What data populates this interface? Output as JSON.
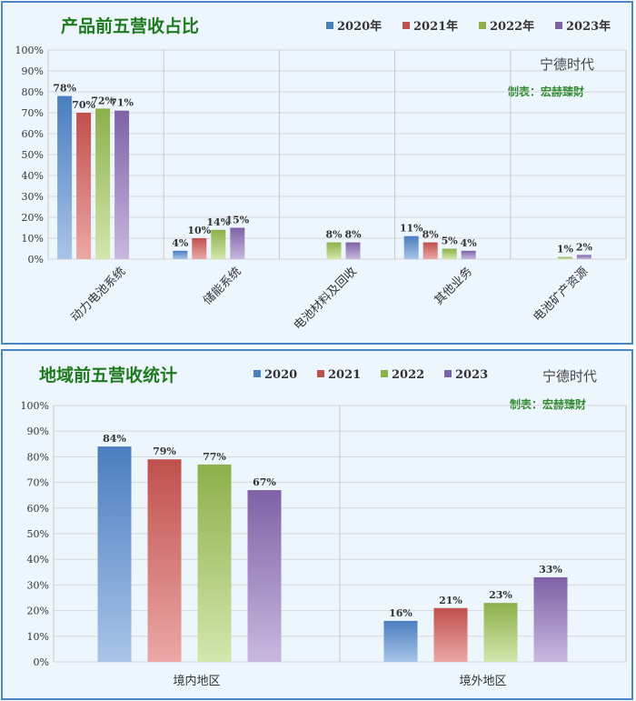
{
  "colors": {
    "s2020": [
      "#4a7ebf",
      "#a9c4e8"
    ],
    "s2021": [
      "#c0504d",
      "#eba8a6"
    ],
    "s2022": [
      "#8db04a",
      "#d3e6ad"
    ],
    "s2023": [
      "#7e62a6",
      "#c8b8df"
    ],
    "title": "#1f7a1f",
    "border": "#4a86c8"
  },
  "chart_data": [
    {
      "type": "bar",
      "title": "产品前五营收占比",
      "brand": "宁德时代",
      "maker": "制表：宏赫臻财",
      "categories": [
        "动力电池系统",
        "储能系统",
        "电池材料及回收",
        "其他业务",
        "电池矿产资源"
      ],
      "legend": [
        "2020年",
        "2021年",
        "2022年",
        "2023年"
      ],
      "series": [
        {
          "name": "2020年",
          "values": [
            78,
            4,
            null,
            11,
            null
          ],
          "labels": [
            "78%",
            "4%",
            "",
            "11%",
            ""
          ]
        },
        {
          "name": "2021年",
          "values": [
            70,
            10,
            null,
            8,
            null
          ],
          "labels": [
            "70%",
            "10%",
            "",
            "8%",
            ""
          ]
        },
        {
          "name": "2022年",
          "values": [
            72,
            14,
            8,
            5,
            1
          ],
          "labels": [
            "72%",
            "14%",
            "8%",
            "5%",
            "1%"
          ]
        },
        {
          "name": "2023年",
          "values": [
            71,
            15,
            8,
            4,
            2
          ],
          "labels": [
            "71%",
            "15%",
            "8%",
            "4%",
            "2%"
          ]
        }
      ],
      "yticks": [
        "0%",
        "10%",
        "20%",
        "30%",
        "40%",
        "50%",
        "60%",
        "70%",
        "80%",
        "90%",
        "100%"
      ],
      "ylim": [
        0,
        100
      ],
      "legend_position": "top-right",
      "grid": true
    },
    {
      "type": "bar",
      "title": "地域前五营收统计",
      "brand": "宁德时代",
      "maker": "制表：宏赫臻财",
      "categories": [
        "境内地区",
        "境外地区"
      ],
      "legend": [
        "2020",
        "2021",
        "2022",
        "2023"
      ],
      "series": [
        {
          "name": "2020",
          "values": [
            84,
            16
          ],
          "labels": [
            "84%",
            "16%"
          ]
        },
        {
          "name": "2021",
          "values": [
            79,
            21
          ],
          "labels": [
            "79%",
            "21%"
          ]
        },
        {
          "name": "2022",
          "values": [
            77,
            23
          ],
          "labels": [
            "77%",
            "23%"
          ]
        },
        {
          "name": "2023",
          "values": [
            67,
            33
          ],
          "labels": [
            "67%",
            "33%"
          ]
        }
      ],
      "yticks": [
        "0%",
        "10%",
        "20%",
        "30%",
        "40%",
        "50%",
        "60%",
        "70%",
        "80%",
        "90%",
        "100%"
      ],
      "ylim": [
        0,
        100
      ],
      "legend_position": "top",
      "grid": true
    }
  ]
}
